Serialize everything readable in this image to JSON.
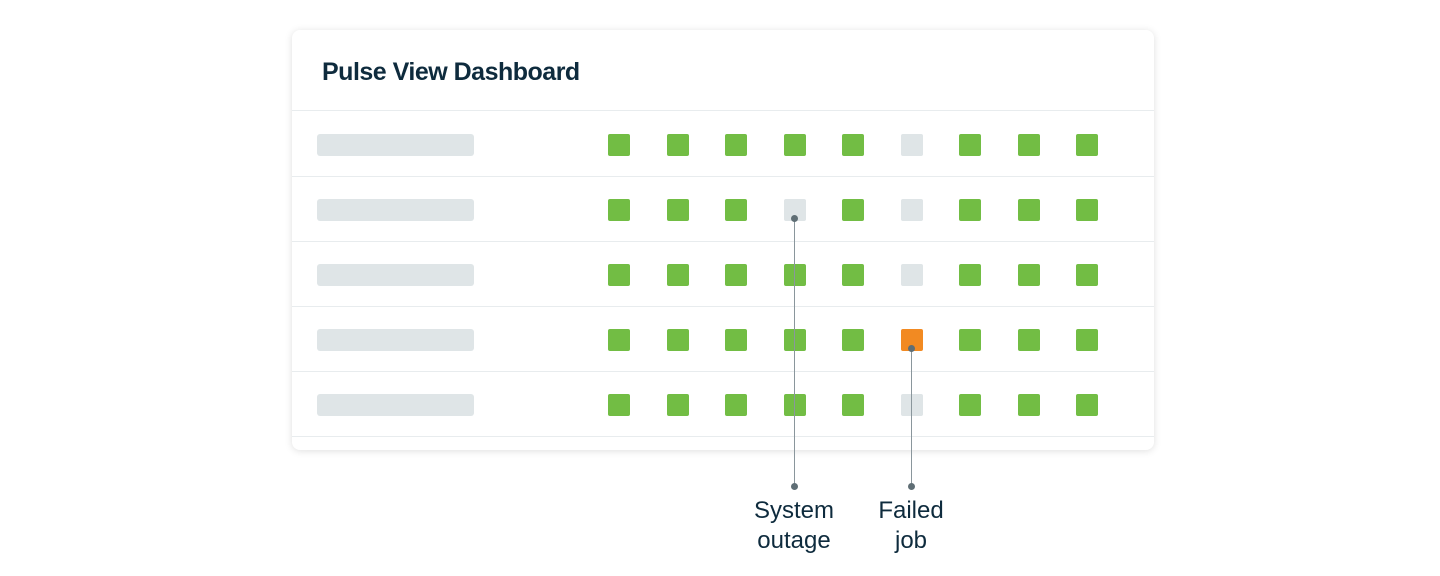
{
  "title": "Pulse View Dashboard",
  "colors": {
    "ok": "#72bd44",
    "none": "#dfe5e7",
    "failed": "#f28a22"
  },
  "rows": [
    [
      "ok",
      "ok",
      "ok",
      "ok",
      "ok",
      "none",
      "ok",
      "ok",
      "ok"
    ],
    [
      "ok",
      "ok",
      "ok",
      "none",
      "ok",
      "none",
      "ok",
      "ok",
      "ok"
    ],
    [
      "ok",
      "ok",
      "ok",
      "ok",
      "ok",
      "none",
      "ok",
      "ok",
      "ok"
    ],
    [
      "ok",
      "ok",
      "ok",
      "ok",
      "ok",
      "failed",
      "ok",
      "ok",
      "ok"
    ],
    [
      "ok",
      "ok",
      "ok",
      "ok",
      "ok",
      "none",
      "ok",
      "ok",
      "ok"
    ]
  ],
  "annotations": {
    "system_outage": {
      "line1": "System",
      "line2": "outage"
    },
    "failed_job": {
      "line1": "Failed",
      "line2": "job"
    }
  }
}
